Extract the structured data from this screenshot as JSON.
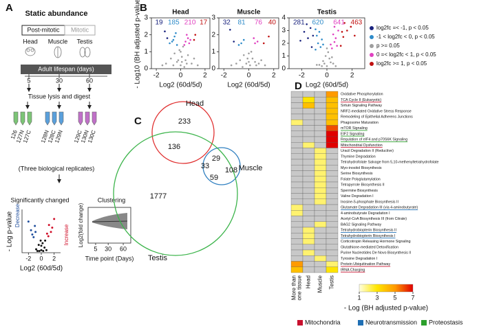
{
  "panel_labels": [
    "A",
    "B",
    "C",
    "D"
  ],
  "panel_a": {
    "title": "Static abundance",
    "post_mitotic": "Post-mitotic",
    "mitotic": "Mitotic",
    "tissues": [
      "Head",
      "Muscle",
      "Testis"
    ],
    "lifespan": "Adult lifespan (days)",
    "timepoints": [
      5,
      30,
      60
    ],
    "digest": "Tissue lysis and digest",
    "tmt": [
      "126",
      "127N",
      "127C",
      "128N",
      "128C",
      "129N",
      "129C",
      "130N",
      "130C"
    ],
    "replicates": "(Three biological replicates)",
    "significant": "Significantly changed",
    "clustering": "Clustering",
    "inset_volcano": {
      "y_label": "- Log p-value",
      "x_label": "Log2 (60d/5d)",
      "decrease": "Decrease",
      "increase": "Increase",
      "xlim": [
        -3,
        3
      ],
      "xticks": [
        -2,
        0,
        2
      ],
      "ylim": [
        0,
        5
      ],
      "series": [
        {
          "color": "#111111",
          "x": [
            -0.8,
            -0.4,
            -0.1,
            0,
            0.2,
            0.5,
            0.8,
            -0.3,
            0.3,
            0,
            -0.6,
            0.6
          ],
          "y": [
            0.4,
            0.9,
            1.4,
            0.3,
            1.1,
            0.6,
            0.3,
            0.2,
            0.2,
            0.8,
            0.2,
            1.4
          ]
        },
        {
          "color": "#1f4e9c",
          "x": [
            -1.2,
            -1.6,
            -1.0,
            -2.0,
            -1.4,
            -0.9
          ],
          "y": [
            1.8,
            2.6,
            3.1,
            3.6,
            2.1,
            2.4
          ]
        },
        {
          "color": "#d0102a",
          "x": [
            1.1,
            1.5,
            1.2,
            2.0,
            1.7,
            0.9
          ],
          "y": [
            1.9,
            2.4,
            3.2,
            3.9,
            2.9,
            2.2
          ]
        }
      ]
    },
    "inset_cluster": {
      "y_label": "Log2(fold change)",
      "x_label": "Time point (Days)",
      "xticks": [
        5,
        30,
        60
      ],
      "xlim": [
        -10,
        75
      ]
    }
  },
  "panel_b": {
    "y_label": "- Log10 (BH adjusted p-value)",
    "x_label": "Log2 (60d/5d)",
    "legend": [
      {
        "name": "log2fc =< -1,  p < 0.05",
        "color": "#1a237e"
      },
      {
        "name": "-1 < log2fc < 0, p < 0.05",
        "color": "#2e8bc9"
      },
      {
        "name": "p >= 0.05",
        "color": "#9e9e9e"
      },
      {
        "name": "0 =< log2fc < 1, p < 0.05",
        "color": "#e040c0"
      },
      {
        "name": "log2fc >= 1, p < 0.05",
        "color": "#c01010"
      }
    ],
    "panels": [
      {
        "title": "Head",
        "counts": [
          19,
          185,
          210,
          17
        ],
        "count_colors": [
          "#1a237e",
          "#2e8bc9",
          "#e040c0",
          "#c01010"
        ],
        "xlim": [
          -2.4,
          2.4
        ],
        "xticks": [
          -2,
          0,
          2
        ],
        "ylim": [
          0,
          3
        ],
        "yticks": [
          0,
          1,
          2,
          3
        ],
        "series": [
          {
            "color": "#9e9e9e",
            "x": [
              -1.2,
              -0.8,
              -0.5,
              -0.3,
              -0.1,
              0,
              0.1,
              0.2,
              0.4,
              0.6,
              0.9,
              1.1,
              -0.6,
              0.3,
              0,
              -0.2,
              0.5,
              0.1,
              -1.5,
              1.4
            ],
            "y": [
              0.3,
              0.6,
              0.9,
              0.4,
              1.1,
              0.2,
              0.7,
              1.3,
              0.5,
              0.8,
              0.3,
              0.6,
              0.2,
              0.1,
              1.0,
              0.5,
              0.3,
              0.4,
              0.2,
              0.2
            ]
          },
          {
            "color": "#2e8bc9",
            "x": [
              -0.7,
              -0.5,
              -0.9,
              -0.4,
              -0.6,
              -0.3
            ],
            "y": [
              1.6,
              1.9,
              1.5,
              2.1,
              1.7,
              1.4
            ]
          },
          {
            "color": "#e040c0",
            "x": [
              0.4,
              0.6,
              0.7,
              0.5,
              0.8,
              0.3
            ],
            "y": [
              1.6,
              1.8,
              1.5,
              2.0,
              1.7,
              1.4
            ]
          },
          {
            "color": "#1a237e",
            "x": [
              -1.1,
              -1.3
            ],
            "y": [
              1.8,
              2.2
            ]
          },
          {
            "color": "#c01010",
            "x": [
              1.1,
              1.2
            ],
            "y": [
              1.7,
              2.0
            ]
          }
        ]
      },
      {
        "title": "Muscle",
        "counts": [
          32,
          81,
          76,
          40
        ],
        "count_colors": [
          "#1a237e",
          "#2e8bc9",
          "#e040c0",
          "#c01010"
        ],
        "xlim": [
          -2.4,
          2.4
        ],
        "xticks": [
          -2,
          0,
          2
        ],
        "ylim": [
          0,
          3
        ],
        "yticks": [
          0,
          1,
          2,
          3
        ],
        "series": [
          {
            "color": "#9e9e9e",
            "x": [
              -1.0,
              -0.7,
              -0.4,
              -0.2,
              0,
              0.1,
              0.3,
              0.5,
              0.8,
              1.0,
              -0.5,
              0.2,
              0,
              -0.1,
              0.6,
              1.3,
              -1.4
            ],
            "y": [
              0.3,
              0.5,
              0.8,
              0.3,
              0.9,
              0.2,
              0.6,
              0.4,
              0.3,
              0.5,
              0.1,
              1.0,
              0.4,
              0.6,
              0.2,
              0.2,
              0.2
            ]
          },
          {
            "color": "#2e8bc9",
            "x": [
              -0.6,
              -0.4,
              -0.8
            ],
            "y": [
              1.5,
              1.7,
              1.4
            ]
          },
          {
            "color": "#e040c0",
            "x": [
              0.5,
              0.7,
              0.4
            ],
            "y": [
              1.5,
              1.6,
              1.8
            ]
          },
          {
            "color": "#1a237e",
            "x": [
              -1.2,
              -1.5
            ],
            "y": [
              1.6,
              2.3
            ]
          },
          {
            "color": "#c01010",
            "x": [
              1.2,
              1.6
            ],
            "y": [
              1.5,
              1.9
            ]
          }
        ]
      },
      {
        "title": "Testis",
        "counts": [
          281,
          620,
          641,
          463
        ],
        "count_colors": [
          "#1a237e",
          "#2e8bc9",
          "#e040c0",
          "#c01010"
        ],
        "xlim": [
          -3,
          3
        ],
        "xticks": [
          -2,
          0,
          2
        ],
        "ylim": [
          0,
          4
        ],
        "yticks": [
          0,
          1,
          2,
          3,
          4
        ],
        "series": [
          {
            "color": "#9e9e9e",
            "x": [
              -0.6,
              -0.3,
              -0.1,
              0,
              0.1,
              0.3,
              0.5,
              -0.4,
              0.2,
              0,
              -0.2,
              0.4,
              0.7,
              -0.8
            ],
            "y": [
              0.3,
              0.6,
              1.0,
              0.2,
              1.3,
              0.5,
              0.4,
              0.2,
              0.8,
              1.6,
              0.4,
              0.9,
              0.2,
              0.3
            ]
          },
          {
            "color": "#2e8bc9",
            "x": [
              -0.9,
              -0.7,
              -0.5,
              -0.8,
              -0.4,
              -0.6,
              -0.3,
              -0.9
            ],
            "y": [
              1.5,
              2.0,
              1.7,
              2.6,
              2.3,
              2.9,
              1.9,
              3.1
            ]
          },
          {
            "color": "#e040c0",
            "x": [
              0.4,
              0.6,
              0.8,
              0.5,
              0.7,
              0.9,
              0.3,
              0.6
            ],
            "y": [
              1.6,
              2.1,
              1.8,
              2.7,
              2.4,
              3.0,
              1.9,
              3.3
            ]
          },
          {
            "color": "#1a237e",
            "x": [
              -1.2,
              -1.5,
              -1.8,
              -1.3,
              -2.1,
              -1.6,
              -1.1
            ],
            "y": [
              1.7,
              2.4,
              2.9,
              3.2,
              2.2,
              3.5,
              2.6
            ]
          },
          {
            "color": "#c01010",
            "x": [
              1.1,
              1.3,
              1.6,
              1.9,
              1.4,
              2.2,
              1.2
            ],
            "y": [
              1.8,
              2.5,
              3.0,
              3.3,
              3.6,
              2.6,
              2.9
            ]
          }
        ]
      }
    ]
  },
  "panel_c": {
    "labels": [
      "Head",
      "Muscle",
      "Testis"
    ],
    "colors": [
      "#e03030",
      "#2f7fc0",
      "#3cb44b"
    ],
    "regions": [
      233,
      136,
      33,
      29,
      108,
      59,
      1777
    ]
  },
  "panel_d": {
    "columns": [
      [
        "More than",
        "one tissue"
      ],
      [
        "Head"
      ],
      [
        "Muscle"
      ],
      [
        "Testis"
      ]
    ],
    "rows": [
      "Oxidative Phosphorylation",
      "TCA Cycle II (Eukaryotic)",
      "Sirtuin Signaling Pathway",
      "NRF2-mediated Oxidative Stress Response",
      "Remodeling of Epithelial Adherens Junctions",
      "Phagosome Maturation",
      "mTOR Signaling",
      "EIF2 Signaling",
      "Regulation of eIF4 and p70S6K Signaling",
      "Mitochondrial Dysfunction",
      "Uracil Degradation II (Reductive)",
      "Thymine Degradation",
      "Tetrahydrofolate Salvage from 5,10-methenyltetrahydrofolate",
      "Myo-inositol Biosynthesis",
      "Serine Biosynthesis",
      "Folate Polyglutamylation",
      "Tetrapyrrole Biosynthesis II",
      "Spermine Biosynthesis",
      "Valine Degradation I",
      "Inosine-5-phosphate Biosynthesis II",
      "Glutamate Degradation III (via 4-aminobutyrate)",
      "4-aminobutyrate Degradation I",
      "Acetyl-CoA Biosynthesis III (from Citrate)",
      "BAG2 Signaling Pathway",
      "Tetrahydrobiopterin Biosynthesis II",
      "Tetrahydrobiopterin Biosynthesis I",
      "Corticotropin Releasing Hormone Signaling",
      "Glutathione-mediated Detoxification",
      "Purine Nucleotides De Novo Biosynthesis II",
      "Tyrosine Degradation I",
      "Protein Ubiquitination Pathway",
      "tRNA Charging"
    ],
    "underline_colors": [
      null,
      "#c8102e",
      null,
      null,
      null,
      null,
      "#2ca02c",
      "#2ca02c",
      "#2ca02c",
      "#c8102e",
      null,
      null,
      null,
      null,
      null,
      null,
      null,
      null,
      null,
      null,
      "#1f6fb4",
      null,
      null,
      null,
      "#1f6fb4",
      "#1f6fb4",
      null,
      null,
      null,
      null,
      "#c8102e",
      "#c8102e"
    ],
    "values": [
      [
        null,
        null,
        null,
        5
      ],
      [
        null,
        3,
        null,
        4
      ],
      [
        null,
        4,
        null,
        4
      ],
      [
        null,
        null,
        null,
        4
      ],
      [
        null,
        null,
        null,
        4
      ],
      [
        2,
        null,
        null,
        4
      ],
      [
        null,
        null,
        null,
        6
      ],
      [
        null,
        null,
        null,
        7
      ],
      [
        null,
        null,
        null,
        7
      ],
      [
        null,
        2,
        null,
        7
      ],
      [
        null,
        null,
        2,
        null
      ],
      [
        null,
        null,
        2,
        null
      ],
      [
        null,
        null,
        2,
        null
      ],
      [
        null,
        null,
        2,
        null
      ],
      [
        null,
        null,
        2,
        null
      ],
      [
        null,
        null,
        2,
        null
      ],
      [
        null,
        null,
        2,
        null
      ],
      [
        null,
        null,
        2,
        null
      ],
      [
        null,
        null,
        2,
        null
      ],
      [
        null,
        null,
        2,
        null
      ],
      [
        2,
        null,
        null,
        null
      ],
      [
        2,
        null,
        null,
        null
      ],
      [
        null,
        null,
        null,
        null
      ],
      [
        null,
        null,
        2,
        null
      ],
      [
        null,
        2,
        null,
        null
      ],
      [
        null,
        2,
        null,
        null
      ],
      [
        null,
        2,
        null,
        null
      ],
      [
        null,
        null,
        null,
        null
      ],
      [
        null,
        2,
        null,
        null
      ],
      [
        null,
        null,
        2,
        null
      ],
      [
        5,
        null,
        null,
        2
      ],
      [
        4,
        null,
        null,
        3
      ]
    ],
    "null_color": "#c8c8c8",
    "scale_lim": [
      1,
      7
    ],
    "scale_ticks": [
      1,
      3,
      5,
      7
    ],
    "scale_title": "- Log (BH adjusted p-value)",
    "groups": [
      {
        "name": "Mitochondria",
        "color": "#c8102e"
      },
      {
        "name": "Neurotransmission",
        "color": "#1f6fb4"
      },
      {
        "name": "Proteostasis",
        "color": "#2ca02c"
      }
    ]
  }
}
